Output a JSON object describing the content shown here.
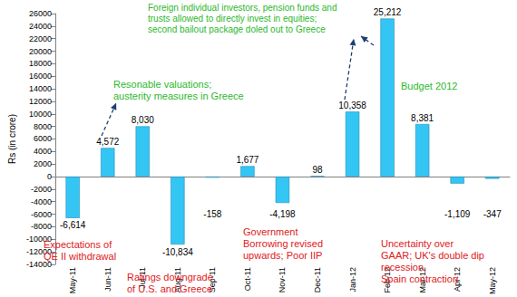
{
  "chart_data": {
    "type": "bar",
    "y_label": "Rs (in crore)",
    "categories": [
      "May-11",
      "Jun-11",
      "Jul-11",
      "Aug-11",
      "Sep-11",
      "Oct-11",
      "Nov-11",
      "Dec-11",
      "Jan-12",
      "Feb-12",
      "Mar-12",
      "Apr-12",
      "May-12"
    ],
    "values": [
      -6614,
      4572,
      8030,
      -10834,
      -158,
      1677,
      -4198,
      98,
      10358,
      25212,
      8381,
      -1109,
      -347
    ],
    "value_labels": [
      "-6,614",
      "4,572",
      "8,030",
      "-10,834",
      "-158",
      "1,677",
      "-4,198",
      "98",
      "10,358",
      "25,212",
      "8,381",
      "-1,109",
      "-347"
    ],
    "color": "#33C6F4",
    "ylim": [
      -14000,
      26000
    ],
    "yticks": [
      -14000,
      -12000,
      -10000,
      -8000,
      -6000,
      -4000,
      -2000,
      0,
      2000,
      4000,
      6000,
      8000,
      10000,
      12000,
      14000,
      16000,
      18000,
      20000,
      22000,
      24000,
      26000
    ],
    "grid": false,
    "data_labels": true,
    "annotations": [
      {
        "text": "Expectations of\nQE II withdrawal",
        "color": "#E0201B"
      },
      {
        "text": "Ratings downgrade\nof U.S. and Greece",
        "color": "#E0201B"
      },
      {
        "text": "Government\nBorrowing revised\nupwards; Poor IIP",
        "color": "#E0201B"
      },
      {
        "text": "Uncertainty over\nGAAR; UK's double dip\nrecession,\nSpain contraction",
        "color": "#E0201B"
      },
      {
        "text": "Resonable valuations;\nausterity measures in Greece",
        "color": "#2DB82D"
      },
      {
        "text": "Foreign individual investors, pension funds and\ntrusts allowed to directly invest in equities;\nsecond bailout package doled out to Greece",
        "color": "#2DB82D"
      },
      {
        "text": "Budget 2012",
        "color": "#2DB82D"
      }
    ]
  }
}
